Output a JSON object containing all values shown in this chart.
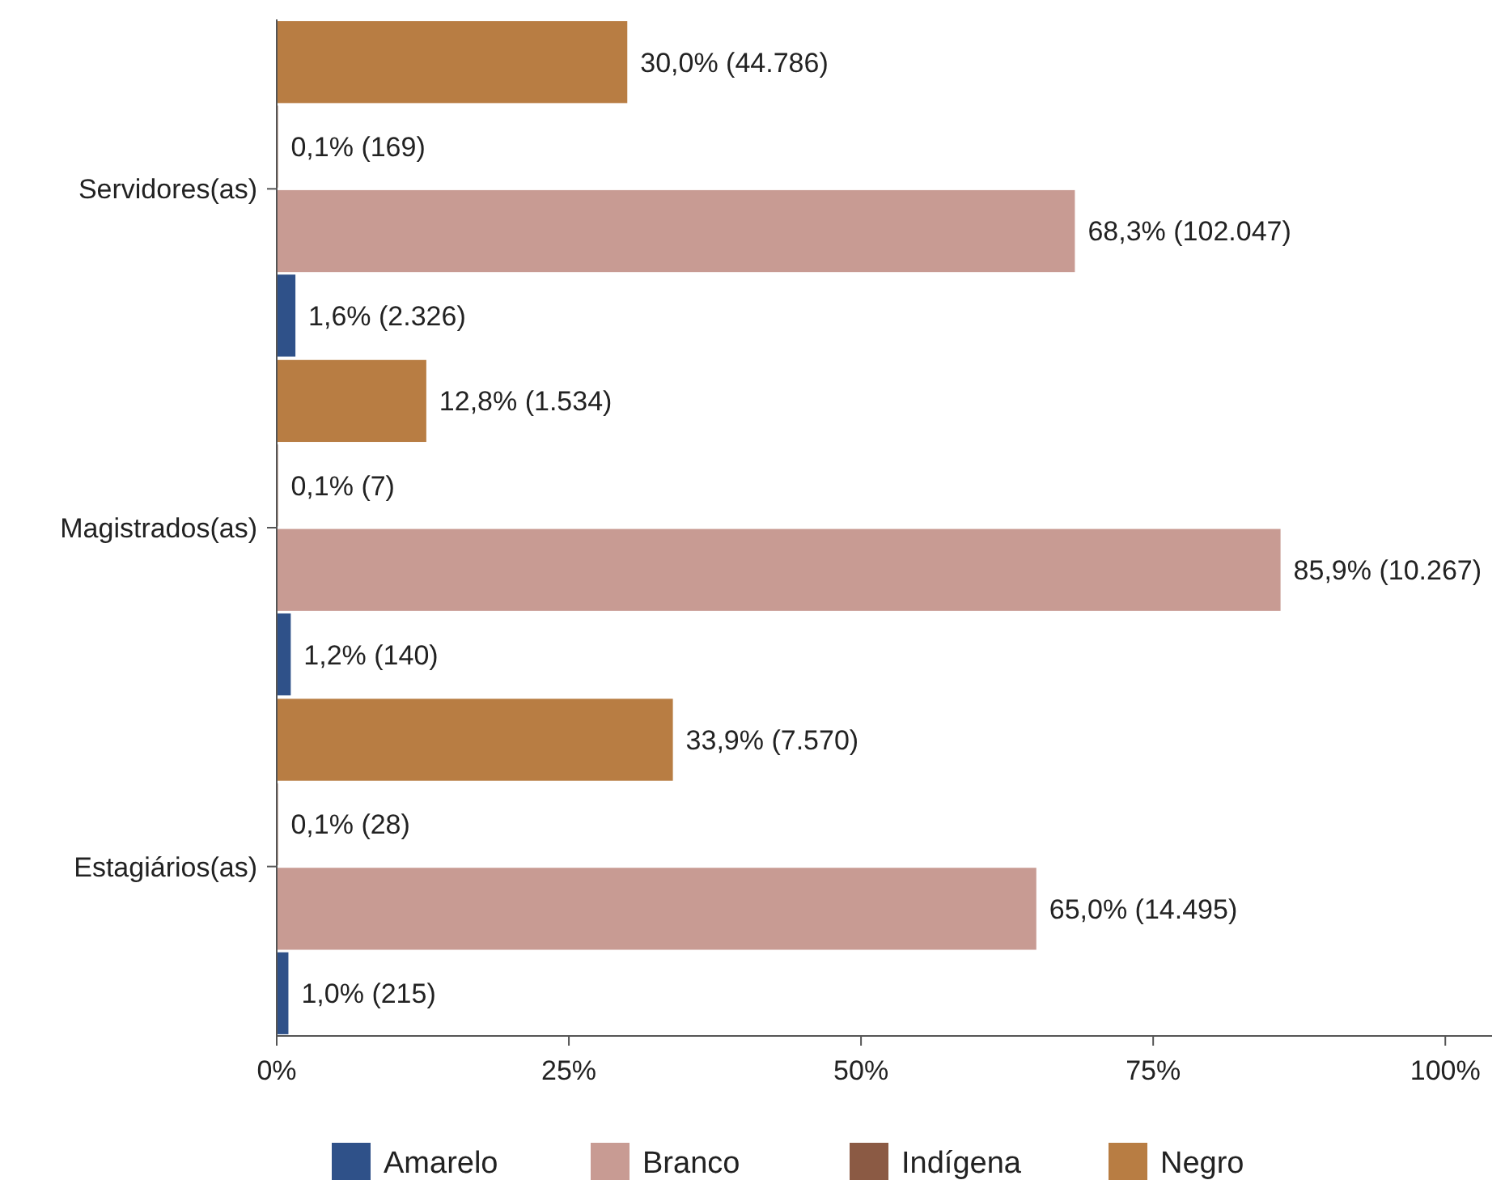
{
  "chart_data": {
    "type": "bar",
    "orientation": "horizontal",
    "categories": [
      "Servidores(as)",
      "Magistrados(as)",
      "Estagiários(as)"
    ],
    "series": [
      {
        "name": "Amarelo",
        "color": "#2f5189",
        "values": [
          1.6,
          1.2,
          1.0
        ],
        "value_labels": [
          "1,6% (2.326)",
          "1,2% (140)",
          "1,0% (215)"
        ]
      },
      {
        "name": "Branco",
        "color": "#c89b93",
        "values": [
          68.3,
          85.9,
          65.0
        ],
        "value_labels": [
          "68,3% (102.047)",
          "85,9% (10.267)",
          "65,0% (14.495)"
        ]
      },
      {
        "name": "Indígena",
        "color": "#8b5a44",
        "values": [
          0.1,
          0.1,
          0.1
        ],
        "value_labels": [
          "0,1% (169)",
          "0,1% (7)",
          "0,1% (28)"
        ]
      },
      {
        "name": "Negro",
        "color": "#b87d43",
        "values": [
          30.0,
          12.8,
          33.9
        ],
        "value_labels": [
          "30,0% (44.786)",
          "12,8% (1.534)",
          "33,9% (7.570)"
        ]
      }
    ],
    "xlim": [
      0,
      104
    ],
    "xticks": [
      {
        "value": 0,
        "label": "0%"
      },
      {
        "value": 25,
        "label": "25%"
      },
      {
        "value": 50,
        "label": "50%"
      },
      {
        "value": 75,
        "label": "75%"
      },
      {
        "value": 100,
        "label": "100%"
      }
    ],
    "grid": false,
    "legend": "bottom"
  }
}
